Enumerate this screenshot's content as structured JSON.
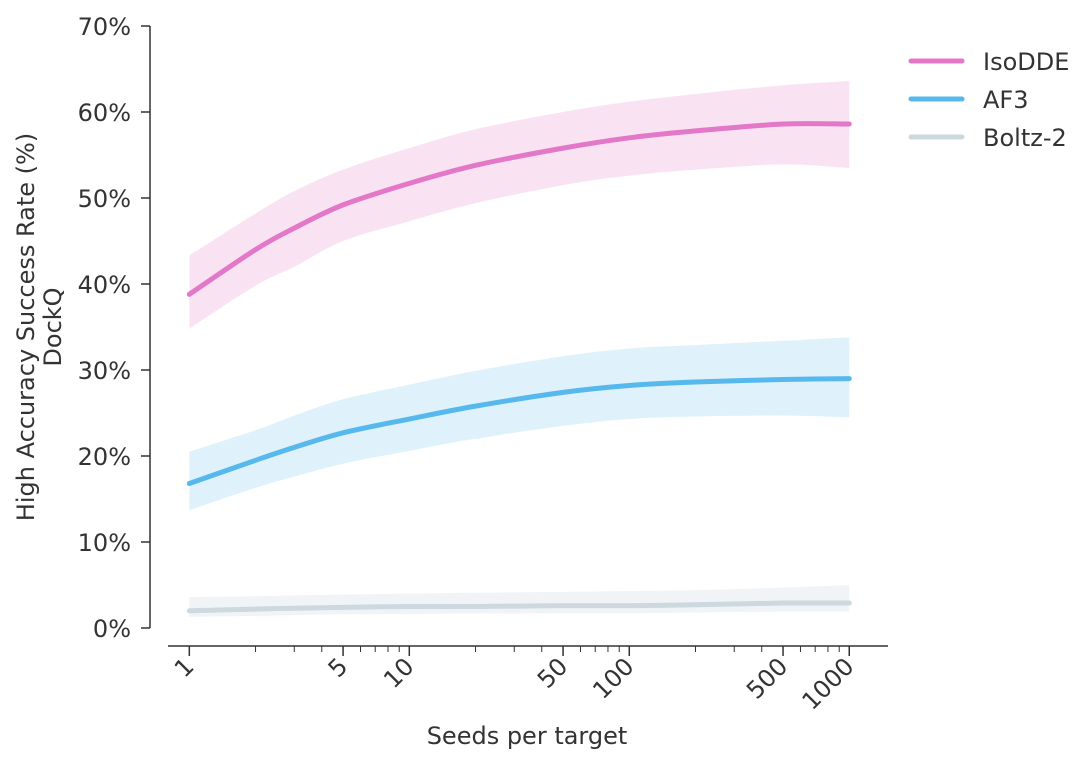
{
  "chart_data": {
    "type": "line",
    "title": "",
    "xlabel": "Seeds per target",
    "ylabel_line1": "High Accuracy Success Rate (%)",
    "ylabel_line2": "DockQ",
    "x_scale": "log",
    "xlim": [
      0.8,
      1500
    ],
    "ylim": [
      0,
      70
    ],
    "y_ticks": [
      0,
      10,
      20,
      30,
      40,
      50,
      60,
      70
    ],
    "y_tick_labels": [
      "0%",
      "10%",
      "20%",
      "30%",
      "40%",
      "50%",
      "60%",
      "70%"
    ],
    "x_ticks_labeled": [
      1,
      5,
      10,
      50,
      100,
      500,
      1000
    ],
    "x_tick_labels": [
      "1",
      "5",
      "10",
      "50",
      "100",
      "500",
      "1000"
    ],
    "x_ticks_minor": [
      2,
      3,
      4,
      6,
      7,
      8,
      9,
      20,
      30,
      40,
      60,
      70,
      80,
      90,
      200,
      300,
      400,
      600,
      700,
      800,
      900
    ],
    "x": [
      1,
      2,
      3,
      5,
      10,
      20,
      50,
      100,
      200,
      500,
      1000
    ],
    "series": [
      {
        "name": "IsoDDE",
        "color": "#e377c8",
        "band_color": "#f9e3f2",
        "values": [
          38.8,
          44.0,
          46.5,
          49.2,
          51.7,
          53.8,
          55.8,
          57.0,
          57.8,
          58.6,
          58.6
        ],
        "lower": [
          34.8,
          39.8,
          42.0,
          45.0,
          47.3,
          49.4,
          51.5,
          52.6,
          53.3,
          53.9,
          53.5
        ],
        "upper": [
          43.3,
          48.2,
          50.8,
          53.3,
          55.8,
          58.0,
          60.0,
          61.2,
          62.1,
          63.1,
          63.6
        ]
      },
      {
        "name": "AF3",
        "color": "#56b8ec",
        "band_color": "#dff2fb",
        "values": [
          16.8,
          19.5,
          21.0,
          22.7,
          24.3,
          25.8,
          27.4,
          28.2,
          28.6,
          28.9,
          29.0
        ],
        "lower": [
          13.7,
          16.3,
          17.6,
          19.1,
          20.6,
          22.0,
          23.5,
          24.3,
          24.6,
          24.7,
          24.5
        ],
        "upper": [
          20.5,
          23.0,
          24.7,
          26.6,
          28.3,
          29.9,
          31.6,
          32.5,
          32.9,
          33.4,
          33.8
        ]
      },
      {
        "name": "Boltz-2",
        "color": "#cdd8df",
        "band_color": "#f0f4f7",
        "values": [
          2.0,
          2.2,
          2.3,
          2.4,
          2.5,
          2.5,
          2.6,
          2.6,
          2.7,
          2.9,
          2.9
        ],
        "lower": [
          1.3,
          1.4,
          1.5,
          1.6,
          1.6,
          1.7,
          1.7,
          1.7,
          1.8,
          1.9,
          1.9
        ],
        "upper": [
          3.6,
          3.7,
          3.8,
          3.9,
          4.0,
          4.1,
          4.2,
          4.3,
          4.4,
          4.7,
          5.0
        ]
      }
    ],
    "legend_position": "top-right",
    "grid": false
  }
}
